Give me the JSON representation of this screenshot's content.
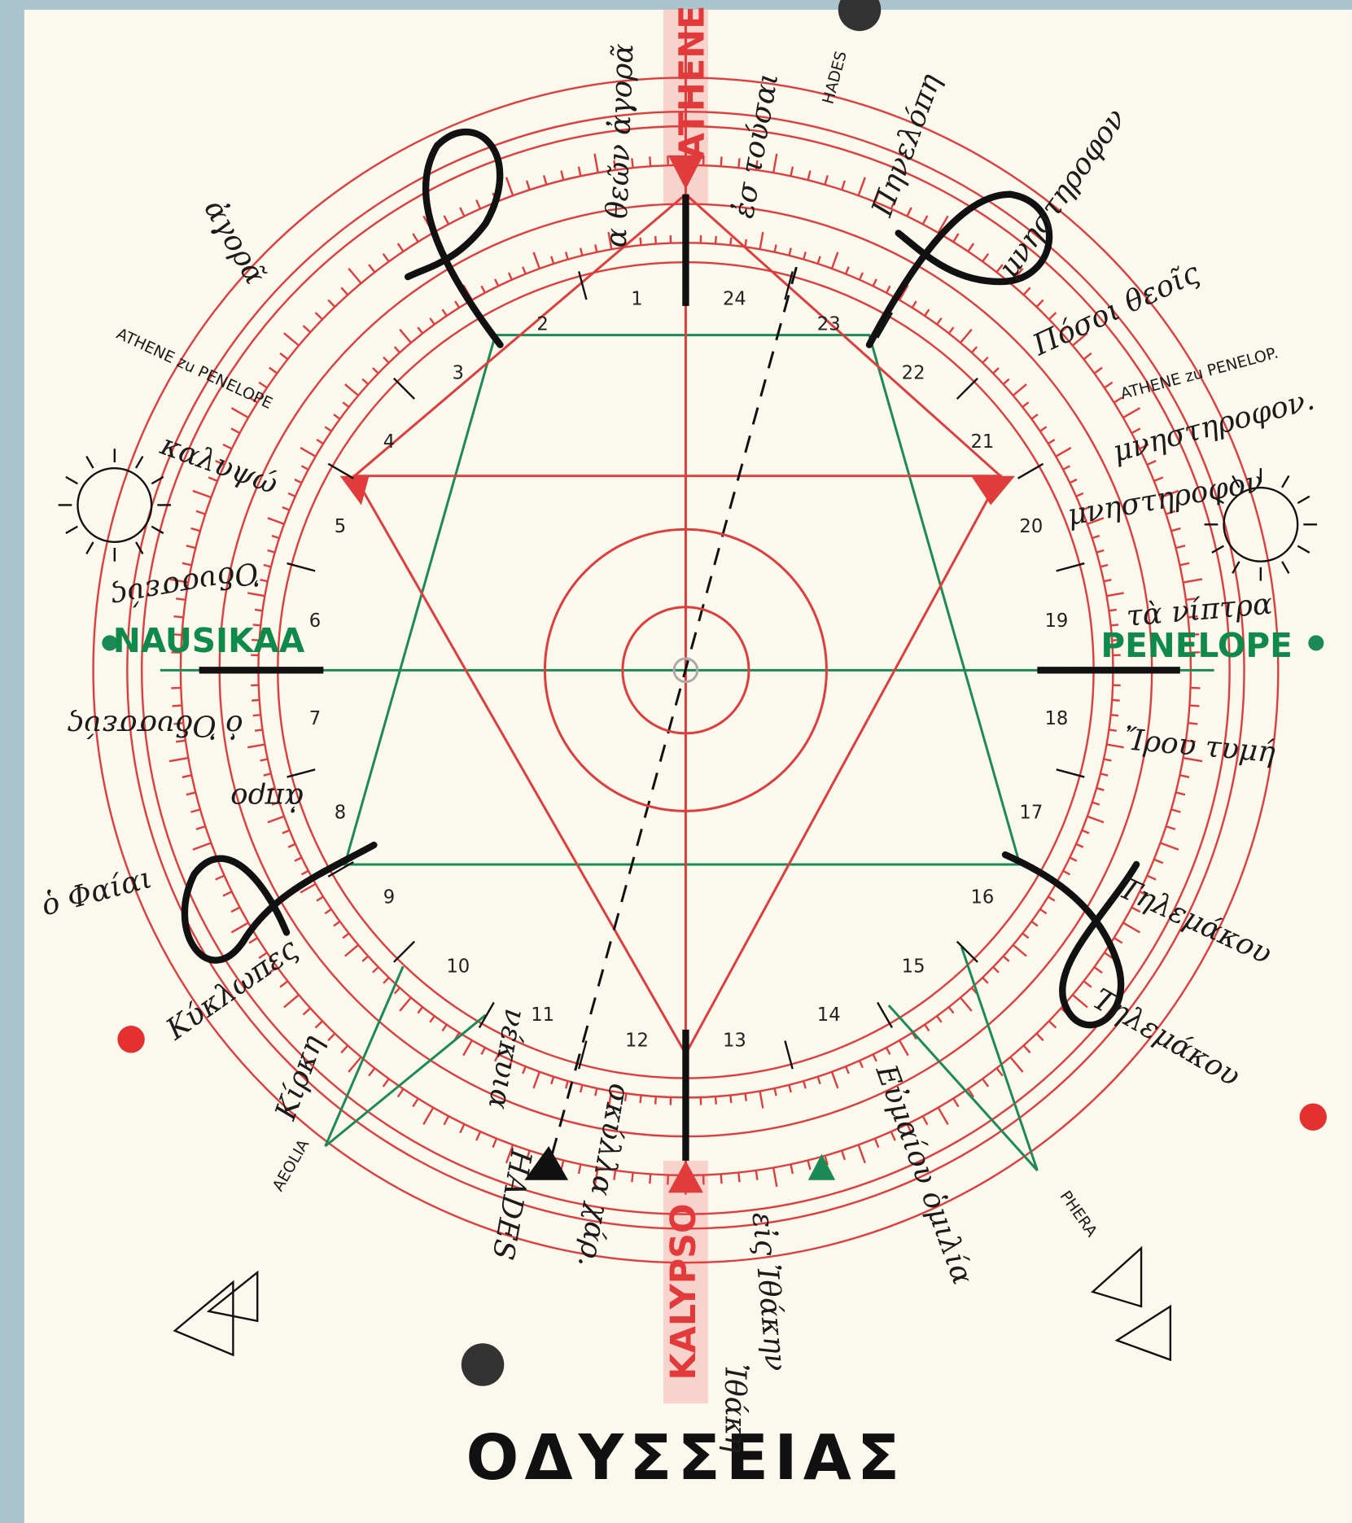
{
  "title": "ΟΔΥΣΣΕΙΑΣ",
  "hour_numbers": [
    1,
    2,
    3,
    4,
    5,
    6,
    7,
    8,
    9,
    10,
    11,
    12,
    13,
    14,
    15,
    16,
    17,
    18,
    19,
    20,
    21,
    22,
    23,
    24
  ],
  "poles": {
    "top": "ATHENE",
    "bottom": "KALYPSO",
    "left": "NAUSIKAA",
    "right": "PENELOPE"
  },
  "annotations": [
    {
      "text": "α θεῶν ἀγορᾶ"
    },
    {
      "text": "ἐσ τούσαι"
    },
    {
      "text": "HADES"
    },
    {
      "text": "Πηνελόπη"
    },
    {
      "text": "μνηστηροφον"
    },
    {
      "text": "Πόσοι θεοῖς"
    },
    {
      "text": "ATHENE zu PENELOP."
    },
    {
      "text": "μνηστηροφον."
    },
    {
      "text": "μνηστηροφον"
    },
    {
      "text": "τὰ νίπτρα"
    },
    {
      "text": "Ἴρου τυμή"
    },
    {
      "text": "Τηλεμάκου"
    },
    {
      "text": "Τηλεμάκου"
    },
    {
      "text": "PHERA"
    },
    {
      "text": "Εὐμαίου ὁμιλία"
    },
    {
      "text": "εἰς Ἰθάκην"
    },
    {
      "text": "σκύλλα χάρ."
    },
    {
      "text": "HADES"
    },
    {
      "text": "νέκυια"
    },
    {
      "text": "AEOLIA"
    },
    {
      "text": "Κίρκη"
    },
    {
      "text": "Κύκλωπες"
    },
    {
      "text": "ὁ Φαίαι"
    },
    {
      "text": "ἀπρο"
    },
    {
      "text": "ὁ Ὀδυσσεύς"
    },
    {
      "text": "Ὀδυσσεύς"
    },
    {
      "text": "καλυψώ"
    },
    {
      "text": "ATHENE zu PENELOPE"
    },
    {
      "text": "ἀγορᾶ"
    },
    {
      "text": "Ἰθάκη"
    }
  ]
}
